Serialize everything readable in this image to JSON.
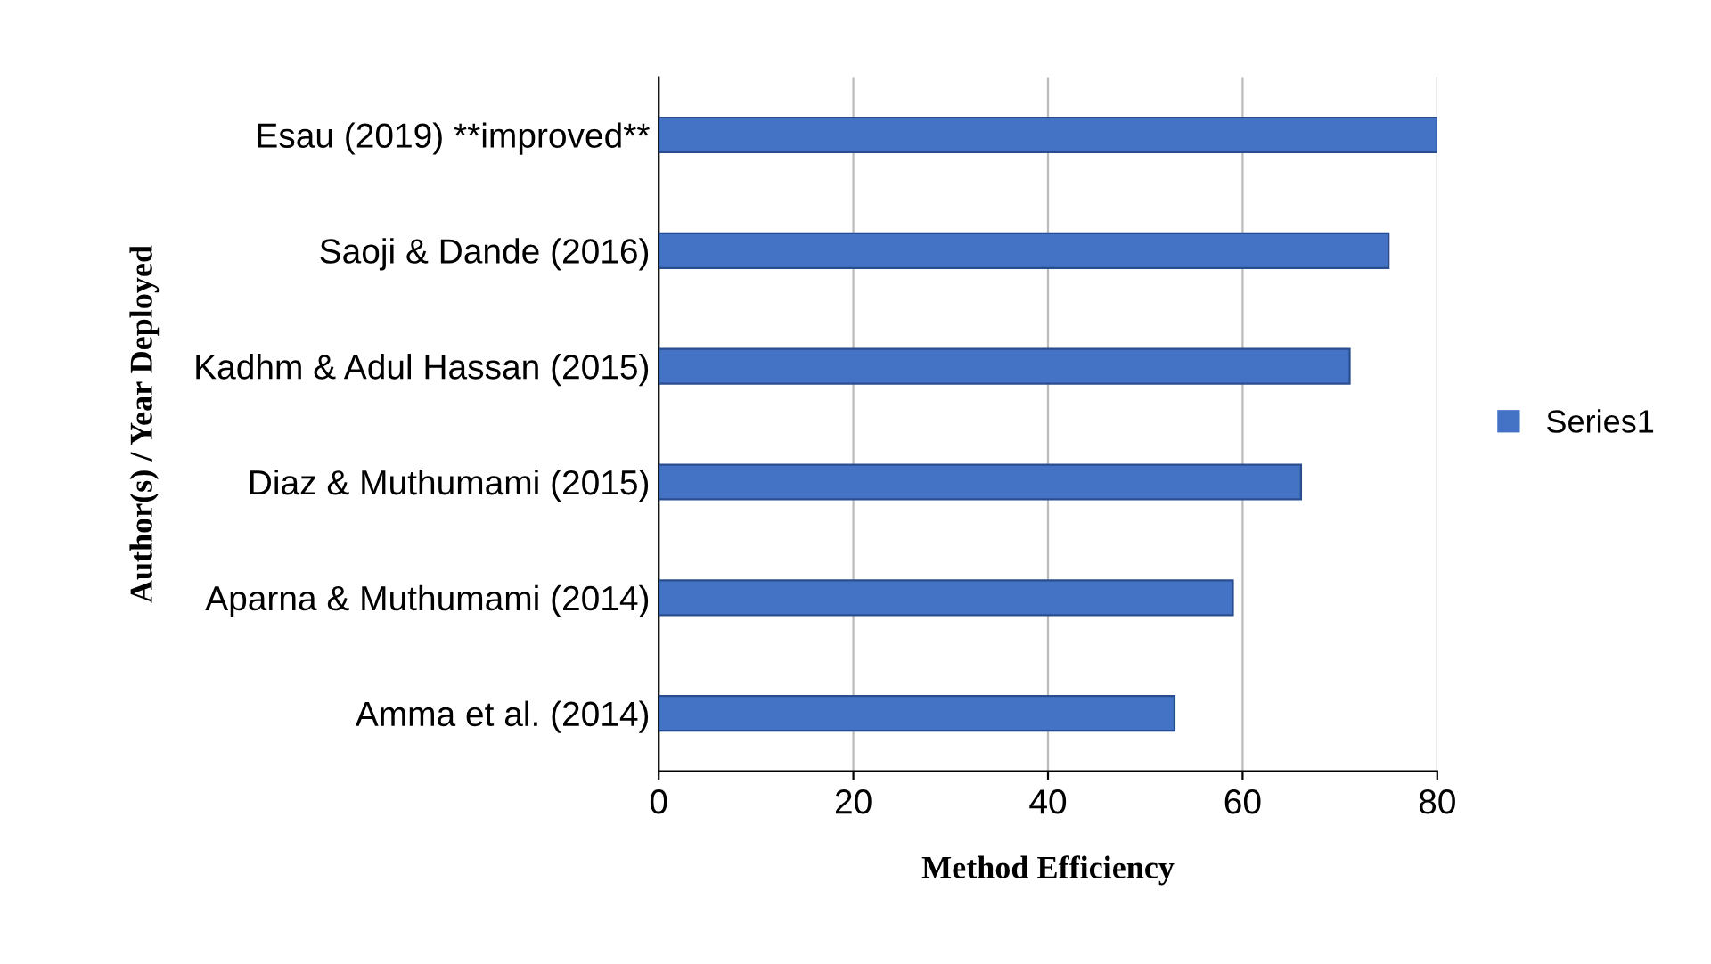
{
  "chart_data": {
    "type": "bar",
    "orientation": "horizontal",
    "xlabel": "Method Efficiency",
    "ylabel": "Author(s) / Year Deployed",
    "categories": [
      "Esau (2019) **improved**",
      "Saoji & Dande (2016)",
      "Kadhm & Adul Hassan (2015)",
      "Diaz & Muthumami (2015)",
      "Aparna & Muthumami (2014)",
      "Amma et al. (2014)"
    ],
    "series": [
      {
        "name": "Series1",
        "color": "#4472c4",
        "values": [
          80,
          75,
          71,
          66,
          59,
          53
        ]
      }
    ],
    "xlim": [
      0,
      80
    ],
    "xticks": [
      0,
      20,
      40,
      60,
      80
    ],
    "grid": "x",
    "legend": "right"
  }
}
